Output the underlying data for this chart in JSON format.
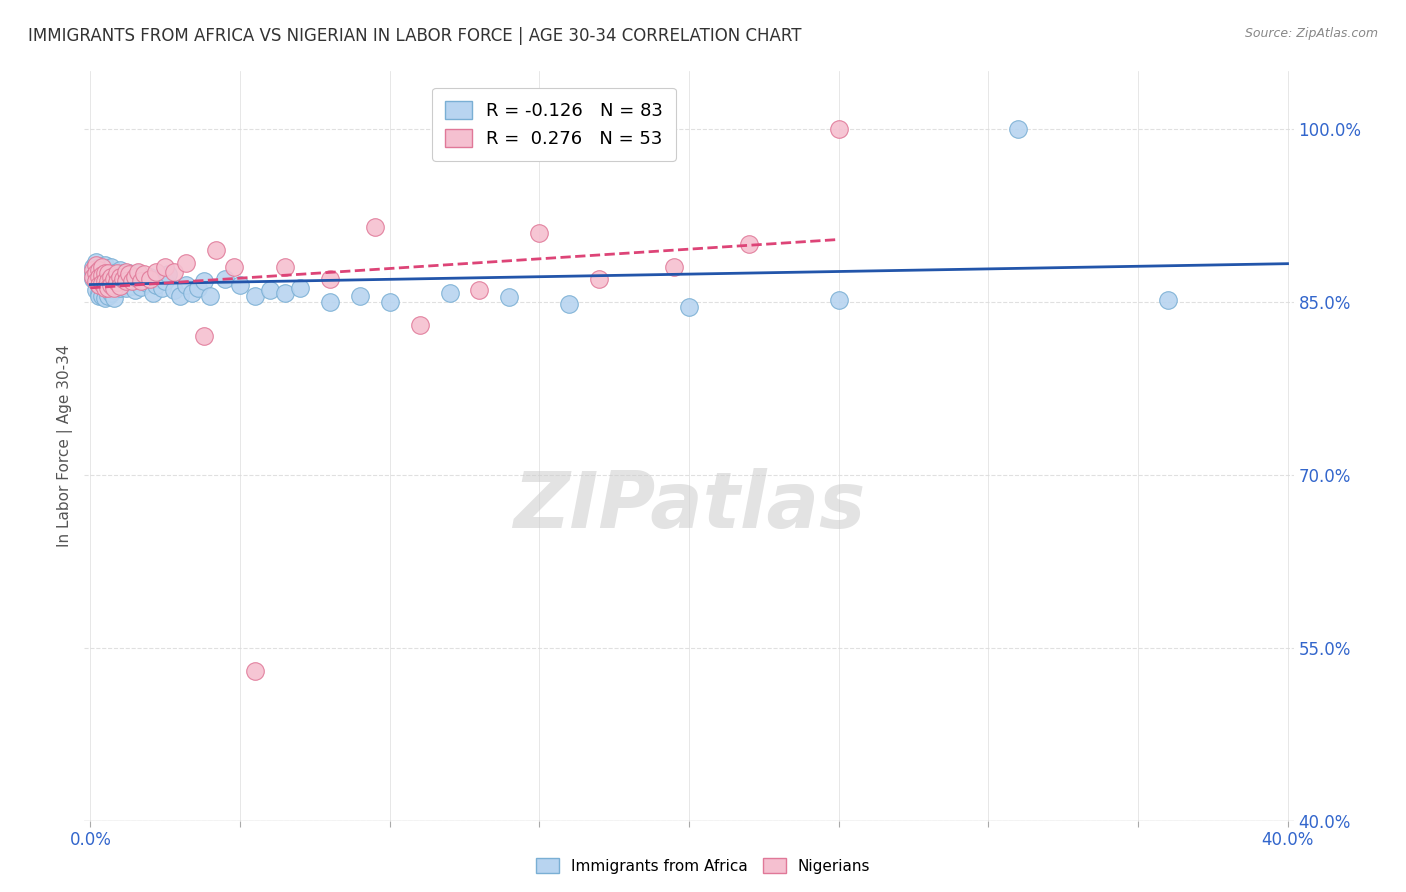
{
  "title": "IMMIGRANTS FROM AFRICA VS NIGERIAN IN LABOR FORCE | AGE 30-34 CORRELATION CHART",
  "source": "Source: ZipAtlas.com",
  "ylabel": "In Labor Force | Age 30-34",
  "xlim": [
    -0.002,
    0.402
  ],
  "ylim": [
    0.4,
    1.05
  ],
  "ytick_labels": [
    "40.0%",
    "55.0%",
    "70.0%",
    "85.0%",
    "100.0%"
  ],
  "ytick_values": [
    0.4,
    0.55,
    0.7,
    0.85,
    1.0
  ],
  "gridline_color": "#e0e0e0",
  "africa_color": "#b8d4f0",
  "africa_edge": "#7aafd4",
  "nigeria_color": "#f5c0d0",
  "nigeria_edge": "#e07898",
  "africa_line_color": "#2255aa",
  "nigeria_line_color": "#dd4477",
  "legend_R_africa": "-0.126",
  "legend_N_africa": "83",
  "legend_R_nigeria": "0.276",
  "legend_N_nigeria": "53",
  "watermark": "ZIPatlas",
  "africa_x": [
    0.001,
    0.001,
    0.001,
    0.002,
    0.002,
    0.002,
    0.002,
    0.003,
    0.003,
    0.003,
    0.003,
    0.003,
    0.004,
    0.004,
    0.004,
    0.004,
    0.005,
    0.005,
    0.005,
    0.005,
    0.005,
    0.006,
    0.006,
    0.006,
    0.006,
    0.007,
    0.007,
    0.007,
    0.007,
    0.008,
    0.008,
    0.008,
    0.008,
    0.009,
    0.009,
    0.01,
    0.01,
    0.01,
    0.011,
    0.011,
    0.012,
    0.012,
    0.013,
    0.013,
    0.014,
    0.014,
    0.015,
    0.015,
    0.016,
    0.016,
    0.017,
    0.018,
    0.019,
    0.02,
    0.021,
    0.022,
    0.023,
    0.024,
    0.025,
    0.026,
    0.028,
    0.03,
    0.032,
    0.034,
    0.036,
    0.038,
    0.04,
    0.045,
    0.05,
    0.055,
    0.06,
    0.065,
    0.07,
    0.08,
    0.09,
    0.1,
    0.12,
    0.14,
    0.16,
    0.2,
    0.25,
    0.31,
    0.36
  ],
  "africa_y": [
    0.88,
    0.875,
    0.87,
    0.885,
    0.875,
    0.868,
    0.86,
    0.88,
    0.872,
    0.865,
    0.858,
    0.855,
    0.878,
    0.87,
    0.862,
    0.855,
    0.882,
    0.875,
    0.868,
    0.86,
    0.853,
    0.877,
    0.87,
    0.862,
    0.855,
    0.88,
    0.872,
    0.865,
    0.858,
    0.875,
    0.868,
    0.86,
    0.853,
    0.872,
    0.864,
    0.878,
    0.87,
    0.862,
    0.875,
    0.867,
    0.87,
    0.862,
    0.875,
    0.867,
    0.872,
    0.864,
    0.868,
    0.86,
    0.875,
    0.867,
    0.863,
    0.87,
    0.866,
    0.872,
    0.858,
    0.865,
    0.87,
    0.862,
    0.868,
    0.874,
    0.86,
    0.855,
    0.865,
    0.858,
    0.862,
    0.868,
    0.855,
    0.87,
    0.865,
    0.855,
    0.86,
    0.858,
    0.862,
    0.85,
    0.855,
    0.85,
    0.858,
    0.854,
    0.848,
    0.846,
    0.852,
    1.0,
    0.852
  ],
  "nigeria_x": [
    0.001,
    0.001,
    0.002,
    0.002,
    0.002,
    0.003,
    0.003,
    0.003,
    0.004,
    0.004,
    0.004,
    0.005,
    0.005,
    0.005,
    0.006,
    0.006,
    0.006,
    0.007,
    0.007,
    0.008,
    0.008,
    0.009,
    0.009,
    0.01,
    0.01,
    0.011,
    0.012,
    0.012,
    0.013,
    0.014,
    0.015,
    0.016,
    0.017,
    0.018,
    0.02,
    0.022,
    0.025,
    0.028,
    0.032,
    0.038,
    0.042,
    0.048,
    0.055,
    0.065,
    0.08,
    0.095,
    0.11,
    0.13,
    0.15,
    0.17,
    0.195,
    0.22,
    0.25
  ],
  "nigeria_y": [
    0.878,
    0.872,
    0.882,
    0.875,
    0.868,
    0.878,
    0.872,
    0.865,
    0.88,
    0.873,
    0.866,
    0.875,
    0.868,
    0.862,
    0.875,
    0.868,
    0.862,
    0.872,
    0.865,
    0.87,
    0.862,
    0.875,
    0.867,
    0.872,
    0.864,
    0.87,
    0.876,
    0.868,
    0.874,
    0.868,
    0.872,
    0.876,
    0.868,
    0.874,
    0.87,
    0.876,
    0.88,
    0.876,
    0.884,
    0.82,
    0.895,
    0.88,
    0.53,
    0.88,
    0.87,
    0.915,
    0.83,
    0.86,
    0.91,
    0.87,
    0.88,
    0.9,
    1.0
  ]
}
